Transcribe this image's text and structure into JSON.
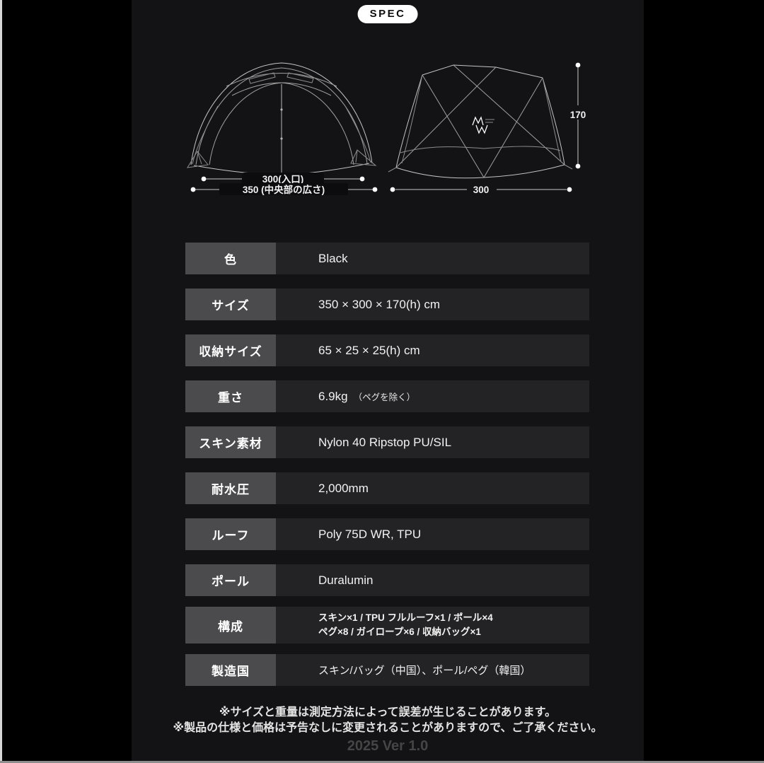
{
  "header": {
    "badge_label": "SPEC"
  },
  "diagrams": {
    "front_view": {
      "entrance_width_label": "300(入口)",
      "center_width_label": "350 (中央部の広さ)"
    },
    "side_view": {
      "height_label": "170",
      "depth_label": "300",
      "logo_text": "MW"
    }
  },
  "spec_table": {
    "rows": [
      {
        "label": "色",
        "value": "Black"
      },
      {
        "label": "サイズ",
        "value": "350 × 300 × 170(h) cm"
      },
      {
        "label": "収納サイズ",
        "value": "65 × 25 × 25(h) cm"
      },
      {
        "label": "重さ",
        "value": "6.9kg",
        "note": "（ペグを除く）"
      },
      {
        "label": "スキン素材",
        "value": "Nylon 40 Ripstop PU/SIL"
      },
      {
        "label": "耐水圧",
        "value": "2,000mm"
      },
      {
        "label": "ルーフ",
        "value": "Poly 75D WR, TPU"
      },
      {
        "label": "ポール",
        "value": "Duralumin"
      },
      {
        "label": "構成",
        "lines": [
          "スキン×1 / TPU フルルーフ×1 / ポール×4",
          "ペグ×8 / ガイロープ×6 / 収納バッグ×1"
        ],
        "tall": true
      },
      {
        "label": "製造国",
        "value": "スキン/バッグ（中国）、ポール/ペグ（韓国）",
        "small": true
      }
    ]
  },
  "footer": {
    "notes": [
      "※サイズと重量は測定方法によって誤差が生じることがあります。",
      "※製品の仕様と価格は予告なしに変更されることがありますので、ご了承ください。"
    ],
    "version": "2025 Ver 1.0"
  },
  "colors": {
    "outer_bg": "#000000",
    "canvas_bg": "#131315",
    "badge_bg": "#ffffff",
    "label_cell_bg": "#4b4b4d",
    "value_cell_bg": "#232325",
    "line_art": "#9f9f9f"
  }
}
